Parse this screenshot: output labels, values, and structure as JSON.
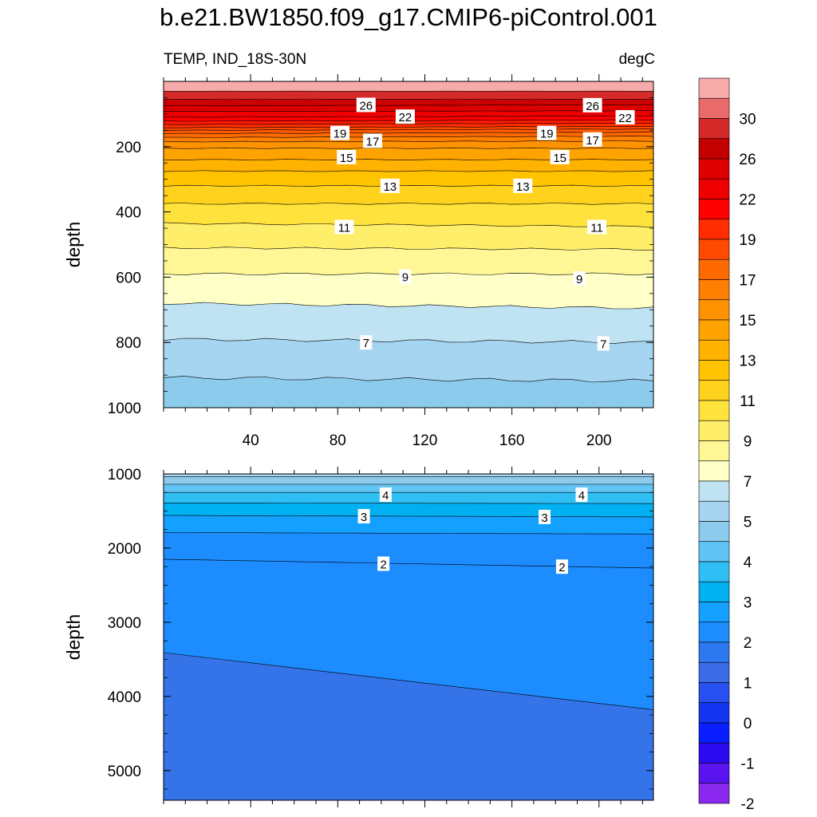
{
  "figure": {
    "title": "b.e21.BW1850.f09_g17.CMIP6-piControl.001",
    "left_subtitle": "TEMP, IND_18S-30N",
    "right_subtitle": "degC"
  },
  "chart_data": [
    {
      "type": "contour",
      "panel": "upper",
      "ylabel": "depth",
      "xlabel": "",
      "xlim": [
        0,
        225
      ],
      "ylim": [
        1000,
        0
      ],
      "yaxis_reversed": true,
      "xticks": [
        40,
        80,
        120,
        160,
        200
      ],
      "yticks": [
        200,
        400,
        600,
        800,
        1000
      ],
      "isotherms": [
        {
          "level": 29,
          "depth_left": 30,
          "depth_right": 30
        },
        {
          "level": 28,
          "depth_left": 55,
          "depth_right": 55
        },
        {
          "level": 26,
          "depth_left": 75,
          "depth_right": 72
        },
        {
          "level": 25,
          "depth_left": 92,
          "depth_right": 90
        },
        {
          "level": 24,
          "depth_left": 110,
          "depth_right": 106
        },
        {
          "level": 23,
          "depth_left": 122,
          "depth_right": 118
        },
        {
          "level": 22,
          "depth_left": 132,
          "depth_right": 128
        },
        {
          "level": 21,
          "depth_left": 142,
          "depth_right": 138
        },
        {
          "level": 20,
          "depth_left": 150,
          "depth_right": 146
        },
        {
          "level": 19,
          "depth_left": 160,
          "depth_right": 156
        },
        {
          "level": 18,
          "depth_left": 172,
          "depth_right": 168
        },
        {
          "level": 17,
          "depth_left": 185,
          "depth_right": 183
        },
        {
          "level": 16,
          "depth_left": 205,
          "depth_right": 205
        },
        {
          "level": 15,
          "depth_left": 240,
          "depth_right": 240
        },
        {
          "level": 14,
          "depth_left": 275,
          "depth_right": 275
        },
        {
          "level": 13,
          "depth_left": 320,
          "depth_right": 320
        },
        {
          "level": 12,
          "depth_left": 375,
          "depth_right": 375
        },
        {
          "level": 11,
          "depth_left": 435,
          "depth_right": 445
        },
        {
          "level": 10,
          "depth_left": 510,
          "depth_right": 515
        },
        {
          "level": 9,
          "depth_left": 590,
          "depth_right": 590
        },
        {
          "level": 8,
          "depth_left": 680,
          "depth_right": 695
        },
        {
          "level": 7,
          "depth_left": 790,
          "depth_right": 800
        },
        {
          "level": 6,
          "depth_left": 908,
          "depth_right": 918
        }
      ],
      "contour_labels": [
        {
          "text": "26",
          "x": 93,
          "y": 72
        },
        {
          "text": "26",
          "x": 197,
          "y": 73
        },
        {
          "text": "22",
          "x": 111,
          "y": 108
        },
        {
          "text": "22",
          "x": 212,
          "y": 110
        },
        {
          "text": "19",
          "x": 81,
          "y": 158
        },
        {
          "text": "19",
          "x": 176,
          "y": 158
        },
        {
          "text": "17",
          "x": 96,
          "y": 182
        },
        {
          "text": "17",
          "x": 197,
          "y": 178
        },
        {
          "text": "15",
          "x": 84,
          "y": 232
        },
        {
          "text": "15",
          "x": 182,
          "y": 232
        },
        {
          "text": "13",
          "x": 104,
          "y": 320
        },
        {
          "text": "13",
          "x": 165,
          "y": 320
        },
        {
          "text": "11",
          "x": 83,
          "y": 446
        },
        {
          "text": "11",
          "x": 199,
          "y": 446
        },
        {
          "text": "9",
          "x": 111,
          "y": 598
        },
        {
          "text": "9",
          "x": 191,
          "y": 604
        },
        {
          "text": "7",
          "x": 93,
          "y": 800
        },
        {
          "text": "7",
          "x": 202,
          "y": 803
        }
      ]
    },
    {
      "type": "contour",
      "panel": "lower",
      "ylabel": "depth",
      "xlabel": "",
      "xlim": [
        0,
        225
      ],
      "ylim": [
        5400,
        1000
      ],
      "yaxis_reversed": true,
      "yticks": [
        1000,
        2000,
        3000,
        4000,
        5000
      ],
      "isotherms": [
        {
          "level": 5,
          "depth_left": 1040,
          "depth_right": 1040
        },
        {
          "level": 4.5,
          "depth_left": 1140,
          "depth_right": 1140
        },
        {
          "level": 4,
          "depth_left": 1250,
          "depth_right": 1250
        },
        {
          "level": 3.5,
          "depth_left": 1390,
          "depth_right": 1400
        },
        {
          "level": 3,
          "depth_left": 1560,
          "depth_right": 1580
        },
        {
          "level": 2.5,
          "depth_left": 1790,
          "depth_right": 1810
        },
        {
          "level": 2,
          "depth_left": 2150,
          "depth_right": 2270
        },
        {
          "level": 1,
          "depth_left": 3410,
          "depth_right": 4180
        }
      ],
      "contour_labels": [
        {
          "text": "4",
          "x": 102,
          "y": 1280
        },
        {
          "text": "4",
          "x": 192,
          "y": 1280
        },
        {
          "text": "3",
          "x": 92,
          "y": 1570
        },
        {
          "text": "3",
          "x": 175,
          "y": 1580
        },
        {
          "text": "2",
          "x": 101,
          "y": 2210
        },
        {
          "text": "2",
          "x": 183,
          "y": 2250
        }
      ]
    }
  ],
  "colorbar": {
    "labels": [
      "30",
      "26",
      "22",
      "19",
      "17",
      "15",
      "13",
      "11",
      "9",
      "7",
      "5",
      "4",
      "3",
      "2",
      "1",
      "0",
      "-1",
      "-2"
    ],
    "colors": [
      "#f6aaaa",
      "#e96a6a",
      "#d52a2a",
      "#c30000",
      "#de0000",
      "#ef0000",
      "#ff0000",
      "#ff2d00",
      "#ff4a00",
      "#ff6a00",
      "#ff7f00",
      "#ff9200",
      "#ffa300",
      "#ffb300",
      "#ffc300",
      "#ffd21e",
      "#ffe23c",
      "#ffee6a",
      "#fff796",
      "#ffffc8",
      "#bfe3f3",
      "#a5d5f0",
      "#8dcbed",
      "#60c4f5",
      "#2fbff5",
      "#00b0f0",
      "#14a0ff",
      "#1c8cff",
      "#2d78ee",
      "#3c6be8",
      "#2850f0",
      "#1436f0",
      "#0a1eff",
      "#2c0af0",
      "#5a14f0",
      "#8a28f0"
    ]
  }
}
